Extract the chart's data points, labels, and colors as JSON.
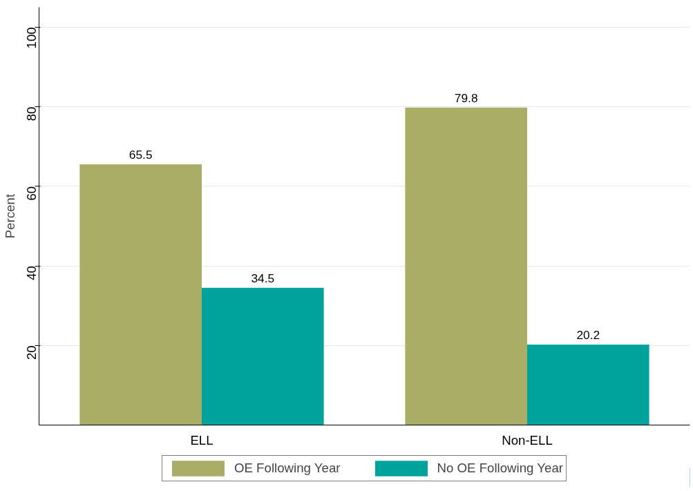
{
  "chart_data": {
    "type": "bar",
    "ylabel": "Percent",
    "categories": [
      "ELL",
      "Non-ELL"
    ],
    "series": [
      {
        "name": "OE Following Year",
        "color": "#aaad66",
        "values": [
          65.5,
          79.8
        ]
      },
      {
        "name": "No OE Following Year",
        "color": "#00a39b",
        "values": [
          34.5,
          20.2
        ]
      }
    ],
    "ylim": [
      0,
      105
    ],
    "yticks": [
      20,
      40,
      60,
      80,
      100
    ],
    "grid": "y",
    "legend": "bottom",
    "data_labels": true
  }
}
